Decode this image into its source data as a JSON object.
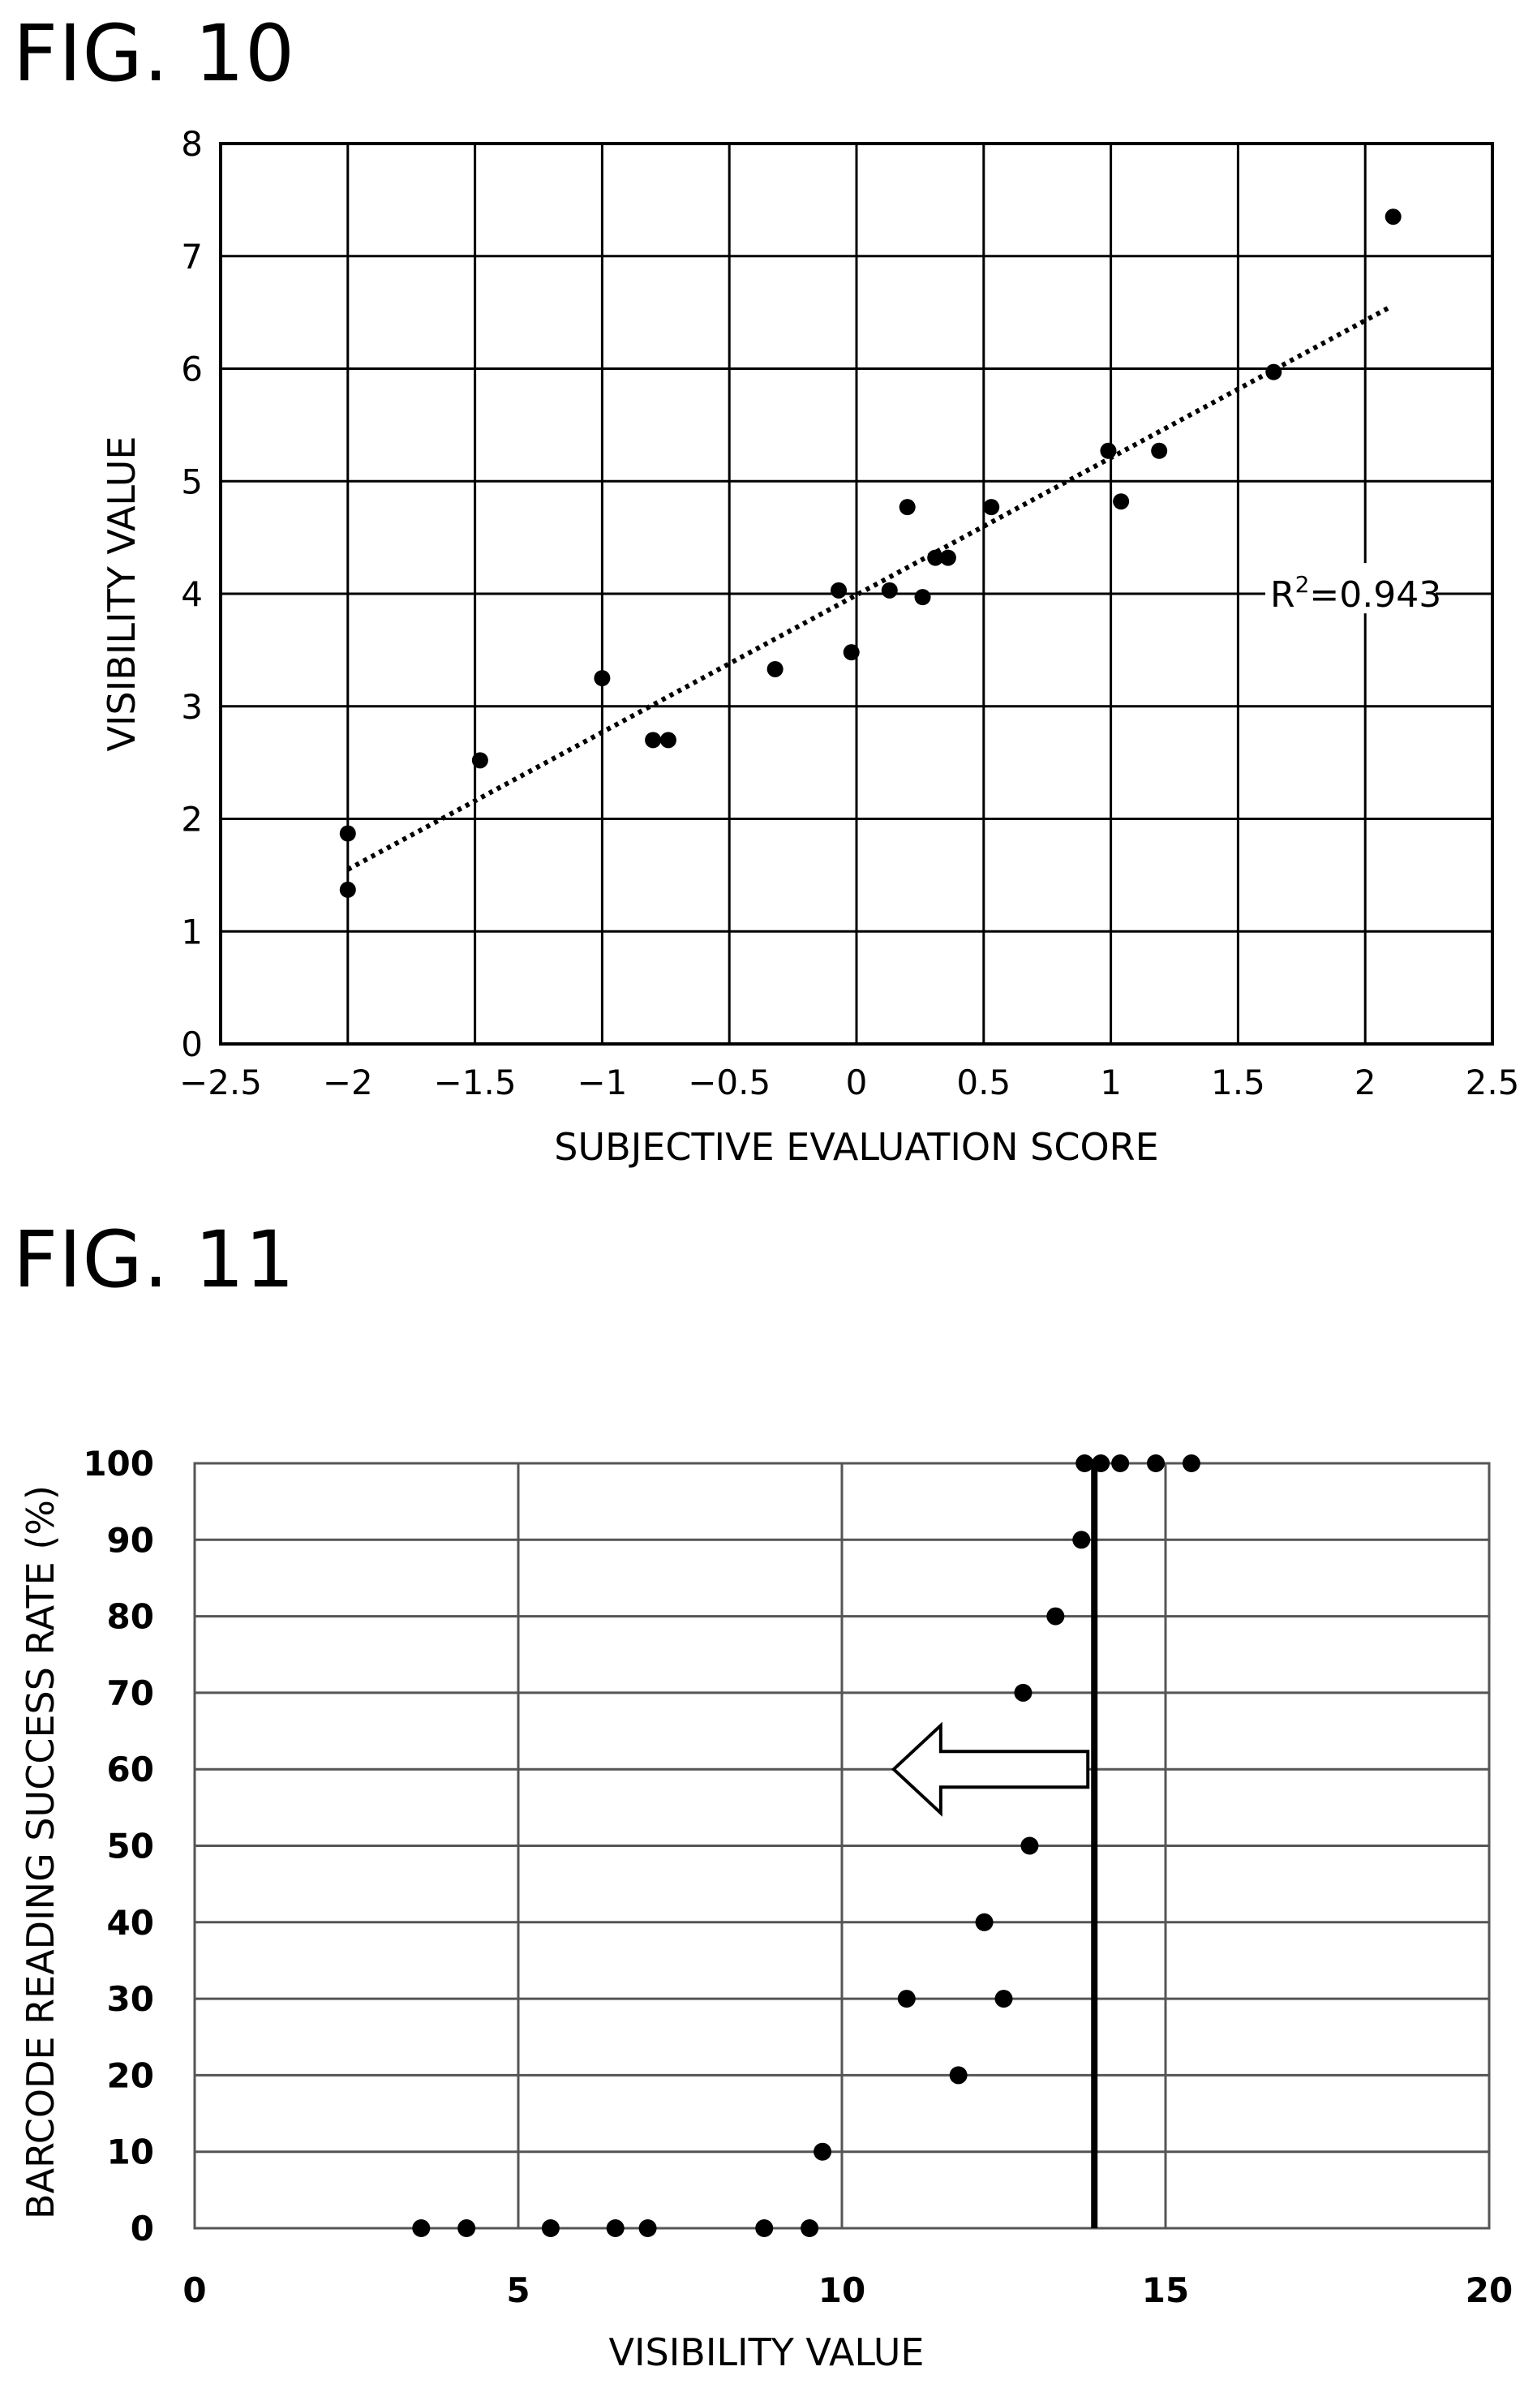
{
  "figures": {
    "fig10": {
      "title": "FIG. 10"
    },
    "fig11": {
      "title": "FIG. 11"
    }
  },
  "chart_data": [
    {
      "id": "fig10",
      "type": "scatter",
      "xlabel": "SUBJECTIVE EVALUATION SCORE",
      "ylabel": "VISIBILITY VALUE",
      "x_tick_labels": [
        "−2.5",
        "−2",
        "−1.5",
        "−1",
        "−0.5",
        "0",
        "0.5",
        "1",
        "1.5",
        "2",
        "2.5"
      ],
      "y_tick_labels": [
        "0",
        "1",
        "2",
        "3",
        "4",
        "5",
        "6",
        "7",
        "8"
      ],
      "xlim": [
        -2.5,
        2.5
      ],
      "ylim": [
        0,
        8
      ],
      "grid": true,
      "annotation": {
        "prefix": "R",
        "sup": "2",
        "suffix": "=0.943"
      },
      "trendline": {
        "x": [
          -2.0,
          2.1
        ],
        "y": [
          1.55,
          6.55
        ],
        "style": "dotted"
      },
      "points": {
        "x": [
          -2.0,
          -2.0,
          -1.48,
          -1.0,
          -0.8,
          -0.74,
          -0.32,
          -0.07,
          -0.02,
          0.13,
          0.2,
          0.26,
          0.31,
          0.36,
          0.53,
          0.99,
          1.04,
          1.19,
          1.64,
          2.11
        ],
        "y": [
          1.87,
          1.37,
          2.52,
          3.25,
          2.7,
          2.7,
          3.33,
          4.03,
          3.48,
          4.03,
          4.77,
          3.97,
          4.32,
          4.32,
          4.77,
          5.27,
          4.82,
          5.27,
          5.97,
          7.35
        ]
      }
    },
    {
      "id": "fig11",
      "type": "scatter",
      "xlabel": "VISIBILITY VALUE",
      "ylabel": "BARCODE  READING SUCCESS RATE (%)",
      "x_tick_labels": [
        "0",
        "5",
        "10",
        "15",
        "20"
      ],
      "y_tick_labels": [
        "0",
        "10",
        "20",
        "30",
        "40",
        "50",
        "60",
        "70",
        "80",
        "90",
        "100"
      ],
      "xlim": [
        0,
        20
      ],
      "ylim": [
        0,
        100
      ],
      "grid": true,
      "threshold_x": 13.9,
      "arrow": {
        "from_x": 13.8,
        "to_x": 10.8,
        "y": 60,
        "direction": "left"
      },
      "points": {
        "x": [
          3.5,
          4.2,
          5.5,
          6.5,
          7.0,
          8.8,
          9.5,
          9.7,
          11.8,
          11.0,
          12.5,
          12.2,
          12.9,
          12.8,
          13.3,
          13.7,
          13.75,
          14.0,
          14.3,
          14.85,
          15.4
        ],
        "y": [
          0,
          0,
          0,
          0,
          0,
          0,
          0,
          10,
          20,
          30,
          30,
          40,
          50,
          70,
          80,
          90,
          100,
          100,
          100,
          100,
          100
        ]
      }
    }
  ]
}
